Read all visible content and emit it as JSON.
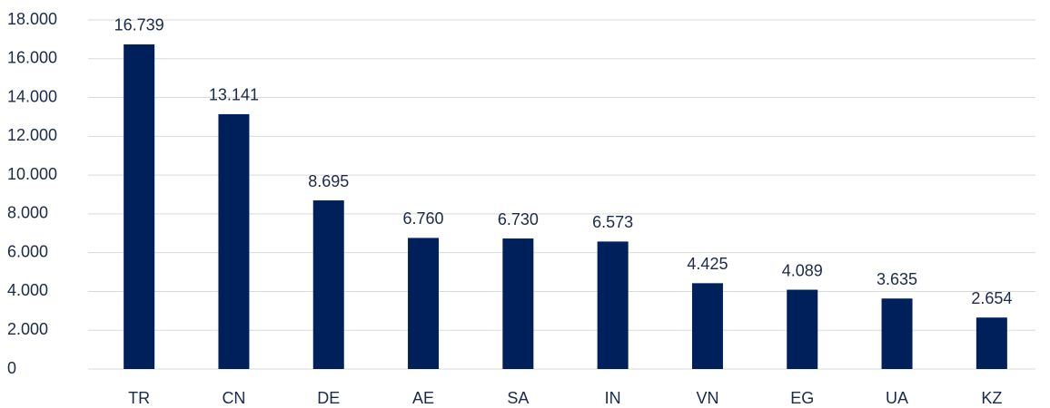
{
  "chart_data": {
    "type": "bar",
    "categories": [
      "TR",
      "CN",
      "DE",
      "AE",
      "SA",
      "IN",
      "VN",
      "EG",
      "UA",
      "KZ"
    ],
    "values": [
      16739,
      13141,
      8695,
      6760,
      6730,
      6573,
      4425,
      4089,
      3635,
      2654
    ],
    "value_labels": [
      "16.739",
      "13.141",
      "8.695",
      "6.760",
      "6.730",
      "6.573",
      "4.425",
      "4.089",
      "3.635",
      "2.654"
    ],
    "color": "#00205b",
    "ylim": [
      0,
      18000
    ],
    "yticks": [
      0,
      {
        "value": 2000,
        "label": "2.000"
      },
      {
        "value": 4000,
        "label": "4.000"
      },
      {
        "value": 6000,
        "label": "6.000"
      },
      {
        "value": 8000,
        "label": "8.000"
      },
      {
        "value": 10000,
        "label": "10.000"
      },
      {
        "value": 12000,
        "label": "12.000"
      },
      {
        "value": 14000,
        "label": "14.000"
      },
      {
        "value": 16000,
        "label": "16.000"
      },
      {
        "value": 18000,
        "label": "18.000"
      }
    ],
    "grid": true
  }
}
